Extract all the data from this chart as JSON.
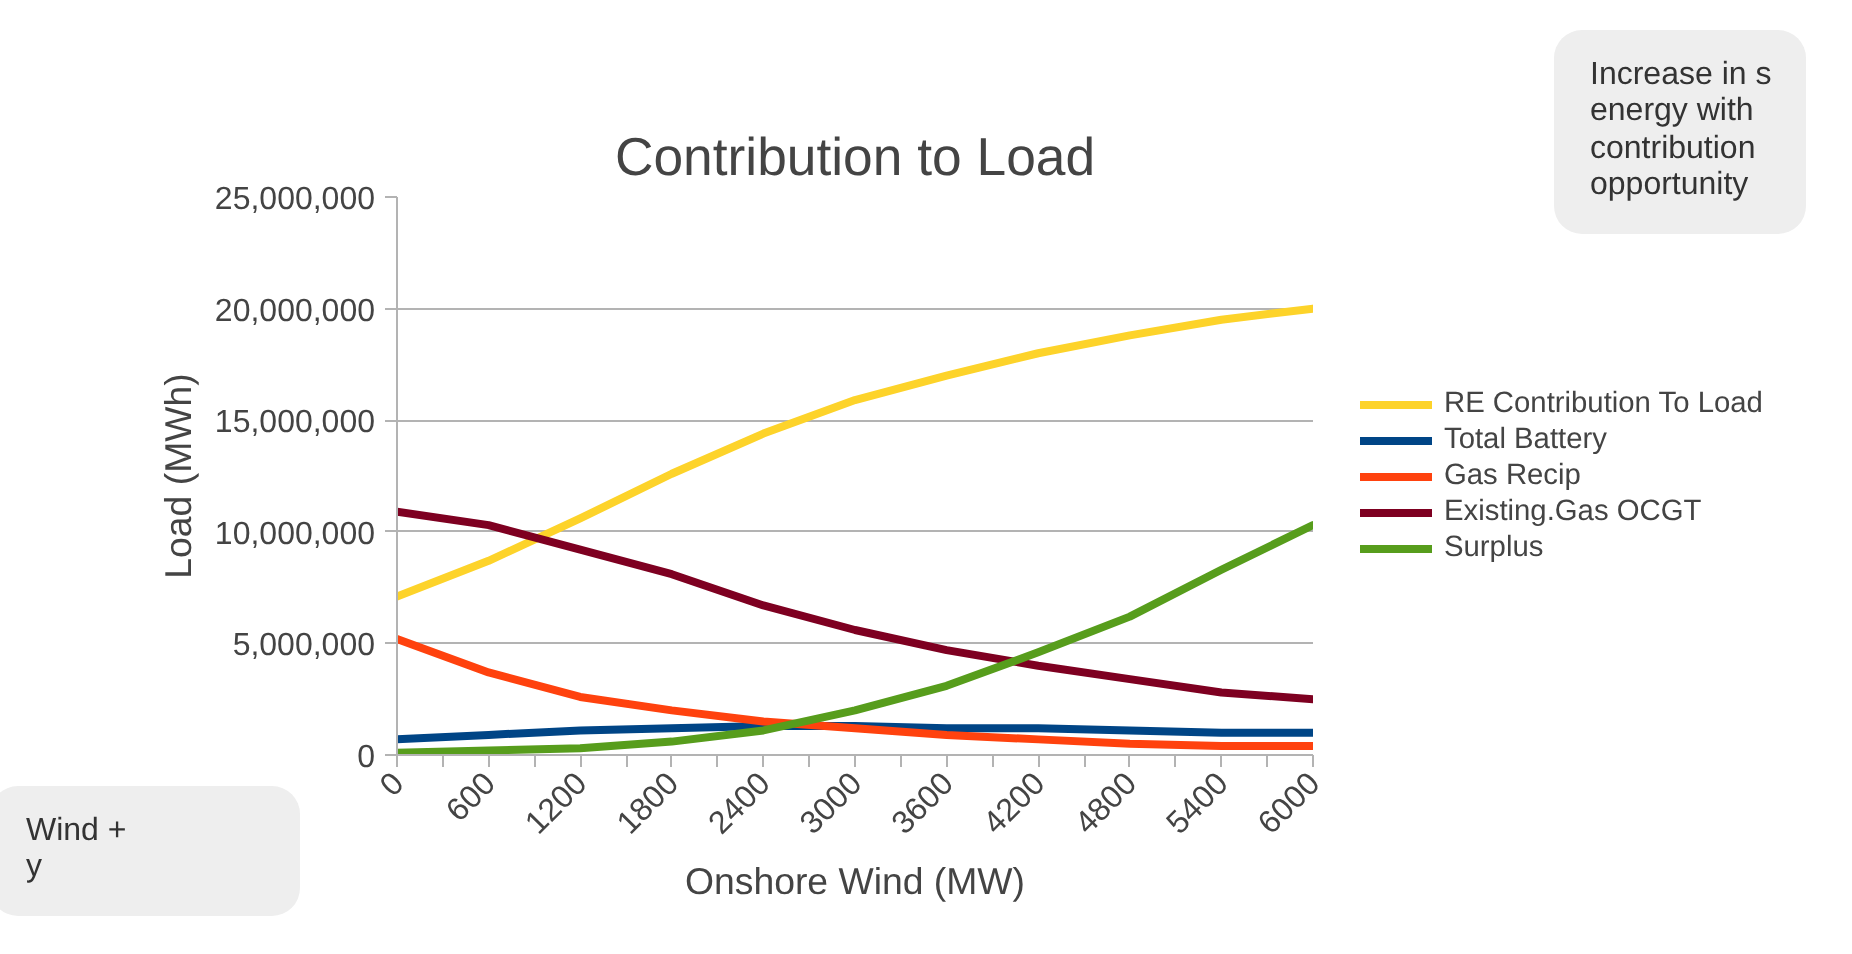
{
  "chart_data": {
    "type": "line",
    "title": "Contribution to Load",
    "xlabel": "Onshore Wind (MW)",
    "ylabel": "Load (MWh)",
    "x": [
      0,
      600,
      1200,
      1800,
      2400,
      3000,
      3600,
      4200,
      4800,
      5400,
      6000
    ],
    "series": [
      {
        "name": "RE Contribution To Load",
        "color": "#fdd32a",
        "values": [
          7100000,
          8700000,
          10600000,
          12600000,
          14400000,
          15900000,
          17000000,
          18000000,
          18800000,
          19500000,
          20000000
        ]
      },
      {
        "name": "Total Battery",
        "color": "#004586",
        "values": [
          700000,
          900000,
          1100000,
          1200000,
          1300000,
          1300000,
          1200000,
          1200000,
          1100000,
          1000000,
          1000000
        ]
      },
      {
        "name": "Gas Recip",
        "color": "#ff420e",
        "values": [
          5200000,
          3700000,
          2600000,
          2000000,
          1500000,
          1200000,
          900000,
          700000,
          500000,
          400000,
          400000
        ]
      },
      {
        "name": "Existing.Gas OCGT",
        "color": "#7e0021",
        "values": [
          10900000,
          10300000,
          9200000,
          8100000,
          6700000,
          5600000,
          4700000,
          4000000,
          3400000,
          2800000,
          2500000
        ]
      },
      {
        "name": "Surplus",
        "color": "#579d1c",
        "values": [
          100000,
          200000,
          300000,
          600000,
          1100000,
          2000000,
          3100000,
          4600000,
          6200000,
          8300000,
          10300000
        ]
      }
    ],
    "xlim": [
      0,
      6000
    ],
    "xticks": [
      0,
      {
        "value": 300,
        "label": null
      },
      600,
      {
        "value": 900,
        "label": null
      },
      1200,
      {
        "value": 1500,
        "label": null
      },
      1800,
      {
        "value": 2100,
        "label": null
      },
      2400,
      {
        "value": 2700,
        "label": null
      },
      3000,
      {
        "value": 3300,
        "label": null
      },
      3600,
      {
        "value": 3900,
        "label": null
      },
      4200,
      {
        "value": 4500,
        "label": null
      },
      4800,
      {
        "value": 5100,
        "label": null
      },
      5400,
      {
        "value": 5700,
        "label": null
      },
      6000
    ],
    "ylim": [
      0,
      25000000
    ],
    "yticks": [
      {
        "value": 0,
        "label": "0"
      },
      {
        "value": 5000000,
        "label": "5,000,000"
      },
      {
        "value": 10000000,
        "label": "10,000,000"
      },
      {
        "value": 15000000,
        "label": "15,000,000"
      },
      {
        "value": 20000000,
        "label": "20,000,000"
      },
      {
        "value": 25000000,
        "label": "25,000,000"
      }
    ],
    "grid": "y",
    "legend": "right",
    "marker": "none",
    "line_style": "solid",
    "annotations": [
      "Increase in s\nenergy with\ncontribution\nopportunity",
      "Wind +\ny"
    ]
  }
}
